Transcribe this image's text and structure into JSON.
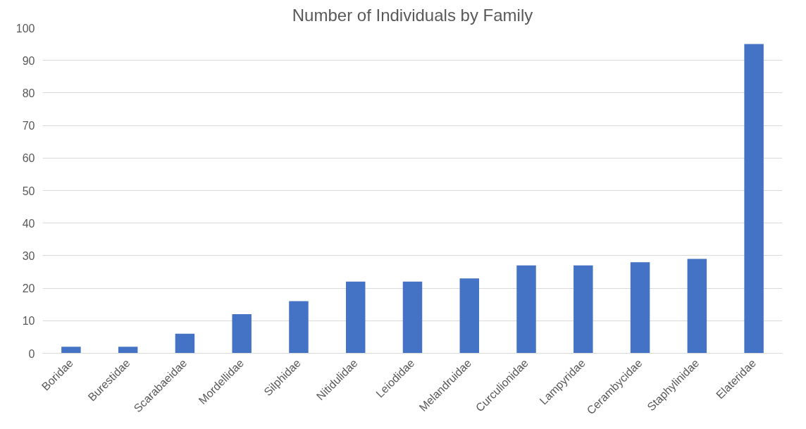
{
  "chart_data": {
    "type": "bar",
    "title": "Number of Individuals by Family",
    "categories": [
      "Boridae",
      "Burestidae",
      "Scarabaeidae",
      "Mordellidae",
      "Silphidae",
      "Nitidulidae",
      "Leiodidae",
      "Melandruidae",
      "Curculionidae",
      "Lampyridae",
      "Cerambycidae",
      "Staphylinidae",
      "Elateridae"
    ],
    "values": [
      2,
      2,
      6,
      12,
      16,
      22,
      22,
      23,
      27,
      27,
      28,
      29,
      95
    ],
    "color": "#4472c4",
    "ylim": [
      0,
      100
    ],
    "yticks": [
      0,
      10,
      20,
      30,
      40,
      50,
      60,
      70,
      80,
      90,
      100
    ],
    "grid": "y"
  }
}
